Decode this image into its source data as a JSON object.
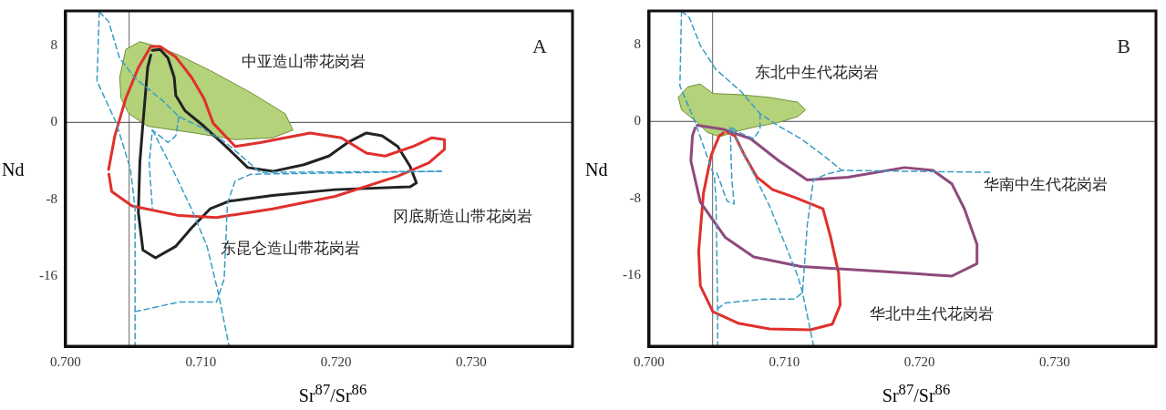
{
  "chart_data": [
    {
      "type": "line",
      "xlabel": "Sr$^{87}$/Sr$^{86}$",
      "ylabel": "Nd",
      "xlim": [
        0.7,
        0.7375
      ],
      "ylim": [
        -23.3,
        11.6
      ],
      "xticks": [
        {
          "value": 0.7,
          "label": "0.700"
        },
        {
          "value": 0.71,
          "label": "0.710"
        },
        {
          "value": 0.72,
          "label": "0.720"
        },
        {
          "value": 0.73,
          "label": "0.730"
        }
      ],
      "yticks": [
        8,
        0,
        -8,
        -16
      ],
      "grid": false,
      "legend": false,
      "marker": "none",
      "ref_lines": [
        {
          "axis": "x",
          "value": 0.7047,
          "color": "#666666"
        },
        {
          "axis": "y",
          "value": 0,
          "color": "#444444"
        }
      ],
      "annotations": [
        "A",
        "中亚造山带花岗岩",
        "冈底斯造山带花岗岩",
        "东昆仑造山带花岗岩"
      ],
      "series": [
        {
          "type": "area",
          "color": "#b3d27a",
          "x": [
            0.704,
            0.70445,
            0.70549,
            0.70676,
            0.70838,
            0.71069,
            0.7137,
            0.71624,
            0.71682,
            0.71532,
            0.71254,
            0.70954,
            0.70607,
            0.70468,
            0.7041,
            0.704
          ],
          "values": [
            4.7,
            7.6,
            8.4,
            7.9,
            7.0,
            5.4,
            3.1,
            0.9,
            -0.8,
            -1.6,
            -1.8,
            -1.1,
            -0.4,
            0.9,
            2.5,
            4.7
          ]
        },
        {
          "type": "line",
          "line_style": "dashed",
          "color": "#3a9cc6",
          "x": [
            0.70249,
            0.70232,
            0.70376,
            0.7048,
            0.70514,
            0.70514
          ],
          "values": [
            11.5,
            4.3,
            -0.1,
            -4.9,
            -9.0,
            -23.2
          ]
        },
        {
          "type": "line",
          "line_style": "dashed",
          "color": "#3a9cc6",
          "x": [
            0.70249,
            0.70318,
            0.70399,
            0.70514,
            0.70723,
            0.70838,
            0.71,
            0.71185,
            0.71439,
            0.7278
          ],
          "values": [
            11.5,
            10.5,
            6.7,
            4.6,
            2.2,
            0.6,
            -0.5,
            -2.1,
            -5.2,
            -5.1
          ]
        },
        {
          "type": "line",
          "line_style": "dashed",
          "color": "#3a9cc6",
          "x": [
            0.70838,
            0.70815,
            0.70757,
            0.70642,
            0.70618,
            0.70642
          ],
          "values": [
            0.6,
            -1.4,
            -2.1,
            -0.8,
            -4.2,
            -9.0
          ]
        },
        {
          "type": "line",
          "line_style": "dashed",
          "color": "#3a9cc6",
          "x": [
            0.70642,
            0.70792,
            0.70931,
            0.71046,
            0.71127,
            0.71208
          ],
          "values": [
            -0.8,
            -4.9,
            -9.0,
            -12.9,
            -17.6,
            -23.2
          ]
        },
        {
          "type": "line",
          "line_style": "dashed",
          "color": "#3a9cc6",
          "x": [
            0.70514,
            0.70838,
            0.71116,
            0.71173,
            0.71197,
            0.71254,
            0.7137,
            0.7278
          ],
          "values": [
            -19.7,
            -18.7,
            -18.7,
            -16.3,
            -8.4,
            -6.1,
            -5.4,
            -5.1
          ]
        },
        {
          "type": "line",
          "color": "#e0302c",
          "x": [
            0.70318,
            0.70364,
            0.70445,
            0.70538,
            0.7063,
            0.70699,
            0.70815,
            0.70931,
            0.71023,
            0.71092,
            0.71254,
            0.71439,
            0.71809,
            0.7204,
            0.72225,
            0.72364,
            0.72572,
            0.72711,
            0.72803,
            0.72803,
            0.72688,
            0.72457,
            0.71994,
            0.71532,
            0.71116,
            0.70838,
            0.70491,
            0.70341,
            0.7032
          ],
          "values": [
            -4.9,
            -1.4,
            2.5,
            5.7,
            7.9,
            7.9,
            6.8,
            4.7,
            2.5,
            -0.1,
            -2.5,
            -2.1,
            -1.1,
            -1.6,
            -3.2,
            -3.5,
            -2.5,
            -1.6,
            -1.8,
            -2.8,
            -4.2,
            -5.6,
            -7.7,
            -9.0,
            -9.9,
            -9.7,
            -8.7,
            -7.2,
            -5.4
          ]
        },
        {
          "type": "line",
          "color": "#222222",
          "x": [
            0.70642,
            0.70699,
            0.70757,
            0.70803,
            0.70815,
            0.70884,
            0.71023,
            0.71185,
            0.71347,
            0.71532,
            0.71763,
            0.71948,
            0.72087,
            0.72225,
            0.72341,
            0.72457,
            0.72549,
            0.72595,
            0.72549,
            0.71994,
            0.71532,
            0.71208,
            0.71069,
            0.70931,
            0.70815,
            0.70665,
            0.70572,
            0.70538,
            0.70549,
            0.70572,
            0.70607,
            0.7063
          ],
          "values": [
            7.5,
            7.6,
            6.7,
            4.7,
            2.8,
            1.2,
            -0.4,
            -2.5,
            -4.7,
            -5.1,
            -4.4,
            -3.5,
            -2.1,
            -1.1,
            -1.4,
            -2.5,
            -4.6,
            -6.3,
            -6.7,
            -7.0,
            -7.6,
            -8.2,
            -9.0,
            -11.0,
            -12.9,
            -14.1,
            -13.3,
            -9.4,
            -4.2,
            -0.1,
            5.7,
            7.0
          ]
        }
      ]
    },
    {
      "type": "line",
      "xlabel": "Sr$^{87}$/Sr$^{86}$",
      "ylabel": "Nd",
      "xlim": [
        0.7,
        0.7375
      ],
      "ylim": [
        -23.4,
        11.5
      ],
      "xticks": [
        {
          "value": 0.7,
          "label": "0.700"
        },
        {
          "value": 0.71,
          "label": "0.710"
        },
        {
          "value": 0.72,
          "label": "0.720"
        },
        {
          "value": 0.73,
          "label": "0.730"
        }
      ],
      "yticks": [
        8,
        0,
        -8,
        -16
      ],
      "grid": false,
      "legend": false,
      "marker": "none",
      "ref_lines": [
        {
          "axis": "x",
          "value": 0.7047,
          "color": "#666666"
        },
        {
          "axis": "y",
          "value": 0,
          "color": "#444444"
        }
      ],
      "annotations": [
        "B",
        "东北中生代花岗岩",
        "华南中生代花岗岩",
        "华北中生代花岗岩"
      ],
      "series": [
        {
          "type": "area",
          "color": "#b3d27a",
          "x": [
            0.70216,
            0.70286,
            0.70379,
            0.70472,
            0.70658,
            0.70891,
            0.711,
            0.71158,
            0.711,
            0.7096,
            0.70774,
            0.70658,
            0.70519,
            0.70426,
            0.70356,
            0.7024,
            0.70216
          ],
          "values": [
            2.5,
            3.6,
            3.9,
            2.9,
            2.8,
            2.5,
            2.0,
            1.2,
            0.5,
            -0.1,
            -0.6,
            -1.0,
            -1.6,
            -1.1,
            -0.1,
            1.2,
            2.5
          ]
        },
        {
          "type": "line",
          "line_style": "dashed",
          "color": "#3a9cc6",
          "x": [
            0.7024,
            0.70228,
            0.70333,
            0.70426,
            0.70484,
            0.70495,
            0.70507,
            0.70507
          ],
          "values": [
            11.5,
            3.7,
            0.2,
            -3.5,
            -5.8,
            -8.1,
            -19.5,
            -23.3
          ]
        },
        {
          "type": "line",
          "line_style": "dashed",
          "color": "#3a9cc6",
          "x": [
            0.7024,
            0.70298,
            0.70379,
            0.70495,
            0.70681,
            0.70821,
            0.7096,
            0.71123,
            0.71286,
            0.71426,
            0.72542
          ],
          "values": [
            11.5,
            10.8,
            7.9,
            5.4,
            3.1,
            0.8,
            -0.5,
            -1.8,
            -3.5,
            -5.1,
            -5.3
          ]
        },
        {
          "type": "line",
          "line_style": "dashed",
          "color": "#3a9cc6",
          "x": [
            0.70821,
            0.70821,
            0.70774,
            0.70658,
            0.706,
            0.70612,
            0.7063,
            0.70577,
            0.70495
          ],
          "values": [
            0.8,
            -0.8,
            -1.8,
            -1.1,
            -0.5,
            -6.1,
            -8.6,
            -8.3,
            -5.1
          ]
        },
        {
          "type": "line",
          "line_style": "dashed",
          "color": "#3a9cc6",
          "x": [
            0.70612,
            0.70751,
            0.70891,
            0.71007,
            0.711,
            0.71135,
            0.71216
          ],
          "values": [
            -0.8,
            -4.8,
            -8.8,
            -12.8,
            -16.1,
            -17.8,
            -23.3
          ]
        },
        {
          "type": "line",
          "line_style": "dashed",
          "color": "#3a9cc6",
          "x": [
            0.70507,
            0.70565,
            0.70844,
            0.71077,
            0.71135,
            0.7117,
            0.71216,
            0.71309,
            0.71426
          ],
          "values": [
            -19.5,
            -18.9,
            -18.5,
            -18.5,
            -17.8,
            -10.8,
            -6.1,
            -5.5,
            -5.1
          ]
        },
        {
          "type": "line",
          "color": "#8e4a7c",
          "x": [
            0.70356,
            0.70542,
            0.70751,
            0.7096,
            0.7117,
            0.71472,
            0.71891,
            0.721,
            0.7224,
            0.72333,
            0.72426,
            0.72426,
            0.7224,
            0.71705,
            0.71123,
            0.70774,
            0.70565,
            0.70379,
            0.70309,
            0.70321,
            0.7034
          ],
          "values": [
            -0.4,
            -0.8,
            -1.8,
            -4.1,
            -6.1,
            -5.8,
            -4.8,
            -5.1,
            -6.5,
            -9.1,
            -12.8,
            -14.8,
            -16.1,
            -15.6,
            -15.1,
            -14.1,
            -12.1,
            -8.4,
            -4.1,
            -1.5,
            -0.7
          ]
        },
        {
          "type": "line",
          "color": "#e0302c",
          "x": [
            0.70577,
            0.70635,
            0.70705,
            0.70798,
            0.70914,
            0.71077,
            0.71286,
            0.71344,
            0.71402,
            0.71414,
            0.71356,
            0.71193,
            0.70891,
            0.70658,
            0.70472,
            0.70379,
            0.70367,
            0.70402,
            0.7046,
            0.70519,
            0.7055
          ],
          "values": [
            -1.1,
            -1.5,
            -3.5,
            -5.8,
            -7.1,
            -7.9,
            -9.1,
            -12.1,
            -15.8,
            -19.1,
            -21.1,
            -21.7,
            -21.6,
            -21.0,
            -19.8,
            -17.1,
            -13.5,
            -7.5,
            -3.5,
            -1.5,
            -1.2
          ]
        }
      ]
    }
  ]
}
